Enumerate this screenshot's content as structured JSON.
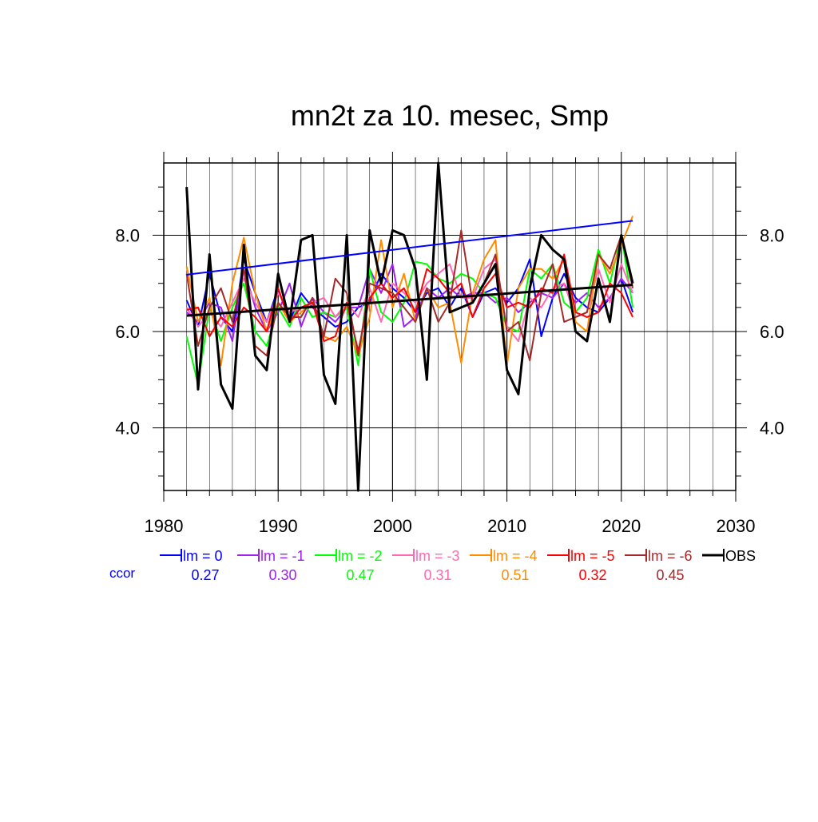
{
  "chart_data": {
    "type": "line",
    "title": "mn2t za 10. mesec, Smp",
    "xlabel": "",
    "ylabel": "",
    "xlim": [
      1980,
      2030
    ],
    "ylim": [
      2.7,
      9.5
    ],
    "x_ticks": [
      1980,
      1990,
      2000,
      2010,
      2020,
      2030
    ],
    "x_tick_labels": [
      "1980",
      "1990",
      "2000",
      "2010",
      "2020",
      "2030"
    ],
    "y_ticks": [
      4.0,
      6.0,
      8.0
    ],
    "y_tick_labels": [
      "4.0",
      "6.0",
      "8.0"
    ],
    "grid": true,
    "legend_position": "bottom",
    "ccor_label": "ccor",
    "x": [
      1982,
      1983,
      1984,
      1985,
      1986,
      1987,
      1988,
      1989,
      1990,
      1991,
      1992,
      1993,
      1994,
      1995,
      1996,
      1997,
      1998,
      1999,
      2000,
      2001,
      2002,
      2003,
      2004,
      2005,
      2006,
      2007,
      2008,
      2009,
      2010,
      2011,
      2012,
      2013,
      2014,
      2015,
      2016,
      2017,
      2018,
      2019,
      2020,
      2021
    ],
    "series": [
      {
        "name": "lm = 0",
        "color": "#0000ff",
        "ccor": "0.27",
        "values": [
          6.65,
          6.1,
          7.2,
          6.3,
          6.0,
          7.5,
          6.8,
          6.2,
          6.9,
          6.2,
          6.8,
          6.5,
          6.3,
          6.1,
          6.2,
          6.5,
          6.6,
          7.2,
          6.9,
          6.7,
          6.4,
          6.8,
          6.9,
          6.5,
          6.9,
          6.3,
          6.8,
          6.9,
          6.6,
          6.9,
          7.5,
          5.9,
          6.7,
          7.2,
          6.7,
          6.5,
          6.4,
          6.7,
          7.1,
          6.4
        ]
      },
      {
        "name": "lm = -1",
        "color": "#a020f0",
        "ccor": "0.30",
        "values": [
          6.4,
          6.2,
          6.6,
          6.5,
          5.8,
          7.3,
          6.5,
          6.0,
          6.4,
          7.0,
          6.1,
          6.7,
          6.4,
          6.2,
          6.5,
          6.5,
          7.3,
          6.8,
          7.4,
          6.1,
          6.3,
          6.9,
          6.7,
          6.9,
          6.7,
          6.8,
          6.8,
          6.6,
          6.7,
          6.4,
          6.6,
          6.8,
          6.7,
          7.0,
          6.6,
          6.8,
          6.5,
          6.7,
          7.1,
          6.8
        ]
      },
      {
        "name": "lm = -2",
        "color": "#00ff00",
        "ccor": "0.47",
        "values": [
          5.9,
          4.9,
          6.5,
          5.8,
          6.5,
          7.0,
          6.0,
          5.7,
          6.5,
          6.1,
          6.7,
          6.3,
          6.4,
          6.3,
          6.5,
          5.3,
          7.3,
          6.4,
          6.2,
          6.6,
          7.45,
          7.4,
          7.1,
          7.0,
          7.2,
          7.1,
          6.8,
          6.7,
          6.1,
          6.0,
          7.3,
          7.1,
          7.4,
          6.6,
          6.4,
          6.7,
          7.7,
          7.0,
          8.0,
          6.5
        ]
      },
      {
        "name": "lm = -3",
        "color": "#ff69b4",
        "ccor": "0.31",
        "values": [
          6.5,
          6.1,
          6.4,
          6.1,
          6.6,
          7.1,
          6.6,
          6.2,
          6.8,
          6.4,
          6.5,
          6.6,
          6.7,
          6.3,
          6.6,
          6.3,
          6.9,
          6.2,
          7.0,
          6.8,
          6.6,
          7.0,
          7.2,
          7.4,
          6.7,
          6.7,
          7.3,
          7.5,
          6.1,
          5.8,
          6.7,
          6.5,
          6.9,
          7.0,
          6.3,
          6.4,
          7.3,
          6.6,
          7.4,
          6.8
        ]
      },
      {
        "name": "lm = -4",
        "color": "#ff8c00",
        "ccor": "0.51",
        "values": [
          7.35,
          6.2,
          6.7,
          5.3,
          7.0,
          7.95,
          6.8,
          6.0,
          6.6,
          6.2,
          6.4,
          6.6,
          5.9,
          5.8,
          6.1,
          5.5,
          6.3,
          7.9,
          6.5,
          7.2,
          6.2,
          6.9,
          6.5,
          6.6,
          5.35,
          6.8,
          7.5,
          7.9,
          5.3,
          6.9,
          7.3,
          7.3,
          7.1,
          7.5,
          6.2,
          6.0,
          7.6,
          7.2,
          7.8,
          8.4
        ]
      },
      {
        "name": "lm = -5",
        "color": "#ff0000",
        "ccor": "0.32",
        "values": [
          6.45,
          6.5,
          5.9,
          6.3,
          6.1,
          6.5,
          6.3,
          6.0,
          6.9,
          6.2,
          6.5,
          6.6,
          5.8,
          5.9,
          6.6,
          5.6,
          6.7,
          7.0,
          6.7,
          6.9,
          6.4,
          7.3,
          7.1,
          6.8,
          7.0,
          6.3,
          6.9,
          7.2,
          6.5,
          6.6,
          6.5,
          6.9,
          6.8,
          7.6,
          6.4,
          6.3,
          6.4,
          7.0,
          6.8,
          6.3
        ]
      },
      {
        "name": "lm = -6",
        "color": "#a52a2a",
        "ccor": "0.45",
        "values": [
          7.2,
          5.7,
          6.5,
          6.9,
          6.2,
          7.3,
          5.7,
          5.5,
          6.6,
          6.3,
          6.3,
          6.7,
          5.9,
          7.1,
          6.8,
          5.5,
          7.0,
          6.9,
          6.8,
          6.5,
          6.2,
          6.9,
          6.2,
          6.6,
          8.1,
          6.6,
          7.0,
          7.6,
          6.0,
          6.2,
          5.4,
          6.8,
          7.4,
          6.2,
          6.3,
          6.4,
          7.6,
          7.3,
          8.0,
          6.9
        ]
      },
      {
        "name": "OBS",
        "color": "#000000",
        "ccor": "",
        "values": [
          9.0,
          4.8,
          7.6,
          4.9,
          4.4,
          7.8,
          5.5,
          5.2,
          7.2,
          6.2,
          7.9,
          8.0,
          5.1,
          4.5,
          8.0,
          2.7,
          8.1,
          7.0,
          8.1,
          8.0,
          7.3,
          5.0,
          9.5,
          6.4,
          6.5,
          6.6,
          7.0,
          7.4,
          5.2,
          4.7,
          6.9,
          8.0,
          7.7,
          7.5,
          6.0,
          5.8,
          7.1,
          6.2,
          8.0,
          7.0
        ]
      }
    ],
    "trend_lines": [
      {
        "series": "lm = 0",
        "color": "#0000ff",
        "x": [
          1982,
          2021
        ],
        "y": [
          7.18,
          8.3
        ]
      },
      {
        "series": "OBS",
        "color": "#000000",
        "x": [
          1982,
          2021
        ],
        "y": [
          6.33,
          6.97
        ]
      }
    ]
  }
}
